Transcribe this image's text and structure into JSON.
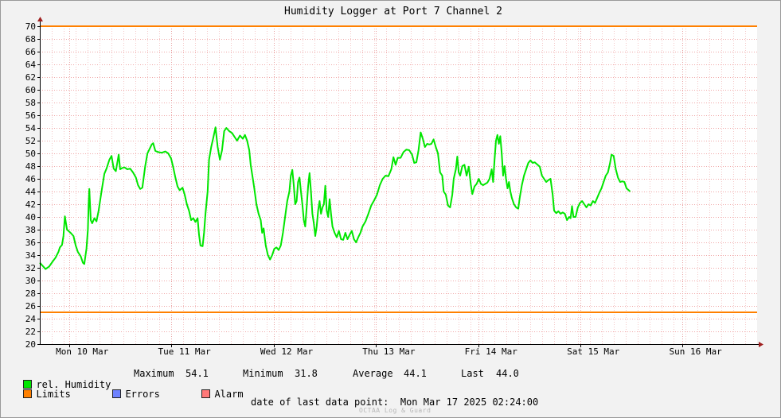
{
  "chart_data": {
    "type": "line",
    "title": "Humidity Logger at Port 7 Channel 2",
    "ylim": [
      20,
      70
    ],
    "y_ticks": [
      20,
      22,
      24,
      26,
      28,
      30,
      32,
      34,
      36,
      38,
      40,
      42,
      44,
      46,
      48,
      50,
      52,
      54,
      56,
      58,
      60,
      62,
      64,
      66,
      68,
      70
    ],
    "x_range": [
      "2025-03-09 14:24",
      "2025-03-17 02:24"
    ],
    "x_tick_labels": [
      "Mon 10 Mar",
      "Tue 11 Mar",
      "Wed 12 Mar",
      "Thu 13 Mar",
      "Fri 14 Mar",
      "Sat 15 Mar",
      "Sun 16 Mar"
    ],
    "grid": true,
    "limits": {
      "upper": 70,
      "lower": 25,
      "color": "#ff8000"
    },
    "series": [
      {
        "name": "rel. Humidity",
        "color": "#00e600",
        "points": [
          [
            0.0,
            32.8
          ],
          [
            0.004,
            32.3
          ],
          [
            0.008,
            31.8
          ],
          [
            0.013,
            32.2
          ],
          [
            0.018,
            33.0
          ],
          [
            0.022,
            33.6
          ],
          [
            0.026,
            34.5
          ],
          [
            0.028,
            35.2
          ],
          [
            0.031,
            35.6
          ],
          [
            0.033,
            37.0
          ],
          [
            0.035,
            40.1
          ],
          [
            0.038,
            38.0
          ],
          [
            0.043,
            37.5
          ],
          [
            0.047,
            37.0
          ],
          [
            0.05,
            35.5
          ],
          [
            0.053,
            34.5
          ],
          [
            0.057,
            33.8
          ],
          [
            0.06,
            32.8
          ],
          [
            0.062,
            32.6
          ],
          [
            0.065,
            35.0
          ],
          [
            0.067,
            38.0
          ],
          [
            0.068,
            42.0
          ],
          [
            0.069,
            44.4
          ],
          [
            0.071,
            39.5
          ],
          [
            0.073,
            39.0
          ],
          [
            0.076,
            39.8
          ],
          [
            0.079,
            39.3
          ],
          [
            0.082,
            41.0
          ],
          [
            0.086,
            44.0
          ],
          [
            0.09,
            46.8
          ],
          [
            0.093,
            47.6
          ],
          [
            0.097,
            49.0
          ],
          [
            0.1,
            49.6
          ],
          [
            0.103,
            47.6
          ],
          [
            0.106,
            47.2
          ],
          [
            0.108,
            48.5
          ],
          [
            0.11,
            49.8
          ],
          [
            0.112,
            47.5
          ],
          [
            0.115,
            47.7
          ],
          [
            0.118,
            47.8
          ],
          [
            0.122,
            47.5
          ],
          [
            0.126,
            47.6
          ],
          [
            0.13,
            47.0
          ],
          [
            0.134,
            46.2
          ],
          [
            0.137,
            45.0
          ],
          [
            0.14,
            44.4
          ],
          [
            0.143,
            44.6
          ],
          [
            0.147,
            48.0
          ],
          [
            0.15,
            50.0
          ],
          [
            0.153,
            50.7
          ],
          [
            0.156,
            51.4
          ],
          [
            0.158,
            51.6
          ],
          [
            0.161,
            50.4
          ],
          [
            0.165,
            50.2
          ],
          [
            0.17,
            50.1
          ],
          [
            0.175,
            50.3
          ],
          [
            0.179,
            50.0
          ],
          [
            0.183,
            49.2
          ],
          [
            0.186,
            47.8
          ],
          [
            0.189,
            46.2
          ],
          [
            0.192,
            44.8
          ],
          [
            0.195,
            44.2
          ],
          [
            0.199,
            44.6
          ],
          [
            0.202,
            43.5
          ],
          [
            0.205,
            42.0
          ],
          [
            0.208,
            41.0
          ],
          [
            0.211,
            39.5
          ],
          [
            0.214,
            39.8
          ],
          [
            0.217,
            39.2
          ],
          [
            0.22,
            39.8
          ],
          [
            0.222,
            37.2
          ],
          [
            0.224,
            35.5
          ],
          [
            0.227,
            35.4
          ],
          [
            0.229,
            37.5
          ],
          [
            0.231,
            40.5
          ],
          [
            0.234,
            44.0
          ],
          [
            0.236,
            49.0
          ],
          [
            0.239,
            51.0
          ],
          [
            0.242,
            52.5
          ],
          [
            0.245,
            54.1
          ],
          [
            0.248,
            51.0
          ],
          [
            0.251,
            49.0
          ],
          [
            0.254,
            50.5
          ],
          [
            0.257,
            53.5
          ],
          [
            0.26,
            54.0
          ],
          [
            0.264,
            53.5
          ],
          [
            0.268,
            53.2
          ],
          [
            0.272,
            52.5
          ],
          [
            0.275,
            52.0
          ],
          [
            0.279,
            52.8
          ],
          [
            0.283,
            52.3
          ],
          [
            0.286,
            52.9
          ],
          [
            0.289,
            52.0
          ],
          [
            0.292,
            50.5
          ],
          [
            0.294,
            48.2
          ],
          [
            0.297,
            46.0
          ],
          [
            0.299,
            44.5
          ],
          [
            0.302,
            42.0
          ],
          [
            0.305,
            40.5
          ],
          [
            0.308,
            39.5
          ],
          [
            0.31,
            37.5
          ],
          [
            0.312,
            38.2
          ],
          [
            0.315,
            35.5
          ],
          [
            0.318,
            34.0
          ],
          [
            0.321,
            33.3
          ],
          [
            0.324,
            34.0
          ],
          [
            0.327,
            35.0
          ],
          [
            0.33,
            35.2
          ],
          [
            0.333,
            34.8
          ],
          [
            0.336,
            35.5
          ],
          [
            0.339,
            37.5
          ],
          [
            0.342,
            40.0
          ],
          [
            0.345,
            42.5
          ],
          [
            0.348,
            44.0
          ],
          [
            0.35,
            46.5
          ],
          [
            0.352,
            47.4
          ],
          [
            0.354,
            45.0
          ],
          [
            0.356,
            42.0
          ],
          [
            0.358,
            42.5
          ],
          [
            0.36,
            45.5
          ],
          [
            0.362,
            46.2
          ],
          [
            0.364,
            44.0
          ],
          [
            0.366,
            42.0
          ],
          [
            0.368,
            39.5
          ],
          [
            0.37,
            38.5
          ],
          [
            0.372,
            41.5
          ],
          [
            0.374,
            44.8
          ],
          [
            0.376,
            46.9
          ],
          [
            0.378,
            44.0
          ],
          [
            0.38,
            40.5
          ],
          [
            0.382,
            39.0
          ],
          [
            0.384,
            37.0
          ],
          [
            0.386,
            38.5
          ],
          [
            0.388,
            41.0
          ],
          [
            0.39,
            42.5
          ],
          [
            0.392,
            40.5
          ],
          [
            0.394,
            41.5
          ],
          [
            0.396,
            42.0
          ],
          [
            0.398,
            44.9
          ],
          [
            0.4,
            41.0
          ],
          [
            0.402,
            40.0
          ],
          [
            0.404,
            42.8
          ],
          [
            0.406,
            40.5
          ],
          [
            0.408,
            38.5
          ],
          [
            0.411,
            37.5
          ],
          [
            0.414,
            36.8
          ],
          [
            0.417,
            37.8
          ],
          [
            0.42,
            36.5
          ],
          [
            0.423,
            36.4
          ],
          [
            0.426,
            37.5
          ],
          [
            0.429,
            36.5
          ],
          [
            0.432,
            37.2
          ],
          [
            0.435,
            37.8
          ],
          [
            0.438,
            36.5
          ],
          [
            0.441,
            36.0
          ],
          [
            0.444,
            36.8
          ],
          [
            0.447,
            37.5
          ],
          [
            0.45,
            38.5
          ],
          [
            0.454,
            39.3
          ],
          [
            0.458,
            40.5
          ],
          [
            0.462,
            41.8
          ],
          [
            0.466,
            42.6
          ],
          [
            0.47,
            43.5
          ],
          [
            0.474,
            45.0
          ],
          [
            0.478,
            46.0
          ],
          [
            0.482,
            46.5
          ],
          [
            0.486,
            46.4
          ],
          [
            0.49,
            47.5
          ],
          [
            0.493,
            49.4
          ],
          [
            0.496,
            48.2
          ],
          [
            0.499,
            49.3
          ],
          [
            0.503,
            49.3
          ],
          [
            0.507,
            50.2
          ],
          [
            0.511,
            50.6
          ],
          [
            0.515,
            50.5
          ],
          [
            0.519,
            49.8
          ],
          [
            0.522,
            48.5
          ],
          [
            0.525,
            48.6
          ],
          [
            0.528,
            50.5
          ],
          [
            0.531,
            53.3
          ],
          [
            0.534,
            52.3
          ],
          [
            0.537,
            51.0
          ],
          [
            0.54,
            51.5
          ],
          [
            0.543,
            51.4
          ],
          [
            0.546,
            51.5
          ],
          [
            0.549,
            52.2
          ],
          [
            0.552,
            51.0
          ],
          [
            0.555,
            50.0
          ],
          [
            0.558,
            47.0
          ],
          [
            0.561,
            46.5
          ],
          [
            0.563,
            44.0
          ],
          [
            0.566,
            43.5
          ],
          [
            0.569,
            41.8
          ],
          [
            0.572,
            41.5
          ],
          [
            0.575,
            43.5
          ],
          [
            0.577,
            46.0
          ],
          [
            0.58,
            47.5
          ],
          [
            0.582,
            49.5
          ],
          [
            0.584,
            47.0
          ],
          [
            0.586,
            46.5
          ],
          [
            0.589,
            48.0
          ],
          [
            0.592,
            48.2
          ],
          [
            0.595,
            46.5
          ],
          [
            0.598,
            47.9
          ],
          [
            0.601,
            45.0
          ],
          [
            0.603,
            43.6
          ],
          [
            0.606,
            44.8
          ],
          [
            0.609,
            45.2
          ],
          [
            0.612,
            46.0
          ],
          [
            0.615,
            45.2
          ],
          [
            0.618,
            45.0
          ],
          [
            0.621,
            45.2
          ],
          [
            0.624,
            45.4
          ],
          [
            0.627,
            46.0
          ],
          [
            0.63,
            47.5
          ],
          [
            0.632,
            45.5
          ],
          [
            0.634,
            49.0
          ],
          [
            0.636,
            52.0
          ],
          [
            0.638,
            52.9
          ],
          [
            0.64,
            51.5
          ],
          [
            0.642,
            52.7
          ],
          [
            0.644,
            50.0
          ],
          [
            0.646,
            46.5
          ],
          [
            0.648,
            48.0
          ],
          [
            0.65,
            46.0
          ],
          [
            0.652,
            44.5
          ],
          [
            0.654,
            45.5
          ],
          [
            0.656,
            44.0
          ],
          [
            0.658,
            43.0
          ],
          [
            0.661,
            42.0
          ],
          [
            0.664,
            41.5
          ],
          [
            0.667,
            41.3
          ],
          [
            0.669,
            43.0
          ],
          [
            0.672,
            45.0
          ],
          [
            0.675,
            46.5
          ],
          [
            0.678,
            47.5
          ],
          [
            0.681,
            48.5
          ],
          [
            0.684,
            48.9
          ],
          [
            0.687,
            48.5
          ],
          [
            0.69,
            48.6
          ],
          [
            0.694,
            48.2
          ],
          [
            0.697,
            47.9
          ],
          [
            0.7,
            46.5
          ],
          [
            0.703,
            46.0
          ],
          [
            0.706,
            45.5
          ],
          [
            0.709,
            45.8
          ],
          [
            0.712,
            46.0
          ],
          [
            0.715,
            43.5
          ],
          [
            0.717,
            41.0
          ],
          [
            0.72,
            40.6
          ],
          [
            0.723,
            40.9
          ],
          [
            0.726,
            40.5
          ],
          [
            0.729,
            40.7
          ],
          [
            0.732,
            40.5
          ],
          [
            0.735,
            39.5
          ],
          [
            0.738,
            40.0
          ],
          [
            0.74,
            39.8
          ],
          [
            0.742,
            41.7
          ],
          [
            0.744,
            40.0
          ],
          [
            0.747,
            40.0
          ],
          [
            0.75,
            41.5
          ],
          [
            0.753,
            42.2
          ],
          [
            0.756,
            42.5
          ],
          [
            0.759,
            42.0
          ],
          [
            0.762,
            41.5
          ],
          [
            0.765,
            42.0
          ],
          [
            0.768,
            41.8
          ],
          [
            0.771,
            42.5
          ],
          [
            0.774,
            42.2
          ],
          [
            0.777,
            43.0
          ],
          [
            0.78,
            43.8
          ],
          [
            0.783,
            44.5
          ],
          [
            0.786,
            45.5
          ],
          [
            0.789,
            46.5
          ],
          [
            0.792,
            47.0
          ],
          [
            0.795,
            48.5
          ],
          [
            0.797,
            49.8
          ],
          [
            0.8,
            49.6
          ],
          [
            0.803,
            47.5
          ],
          [
            0.806,
            46.2
          ],
          [
            0.809,
            45.5
          ],
          [
            0.812,
            45.6
          ],
          [
            0.815,
            45.5
          ],
          [
            0.818,
            44.5
          ],
          [
            0.821,
            44.2
          ],
          [
            0.823,
            44.0
          ]
        ]
      }
    ],
    "stats": {
      "maximum_label": "Maximum",
      "maximum": "54.1",
      "minimum_label": "Minimum",
      "minimum": "31.8",
      "average_label": "Average",
      "average": "44.1",
      "last_label": "Last",
      "last": "44.0"
    }
  },
  "legend": {
    "humidity_label": "rel. Humidity",
    "humidity_color": "#00e600",
    "limits_label": "Limits",
    "limits_color": "#ff8000",
    "errors_label": "Errors",
    "errors_color": "#6e82ff",
    "alarm_label": "Alarm",
    "alarm_color": "#ff7878"
  },
  "footer": {
    "last_point_label": "date of last data point:",
    "last_point_value": "Mon Mar 17 2025 02:24:00",
    "watermark": "OCTAA Log & Guard"
  }
}
